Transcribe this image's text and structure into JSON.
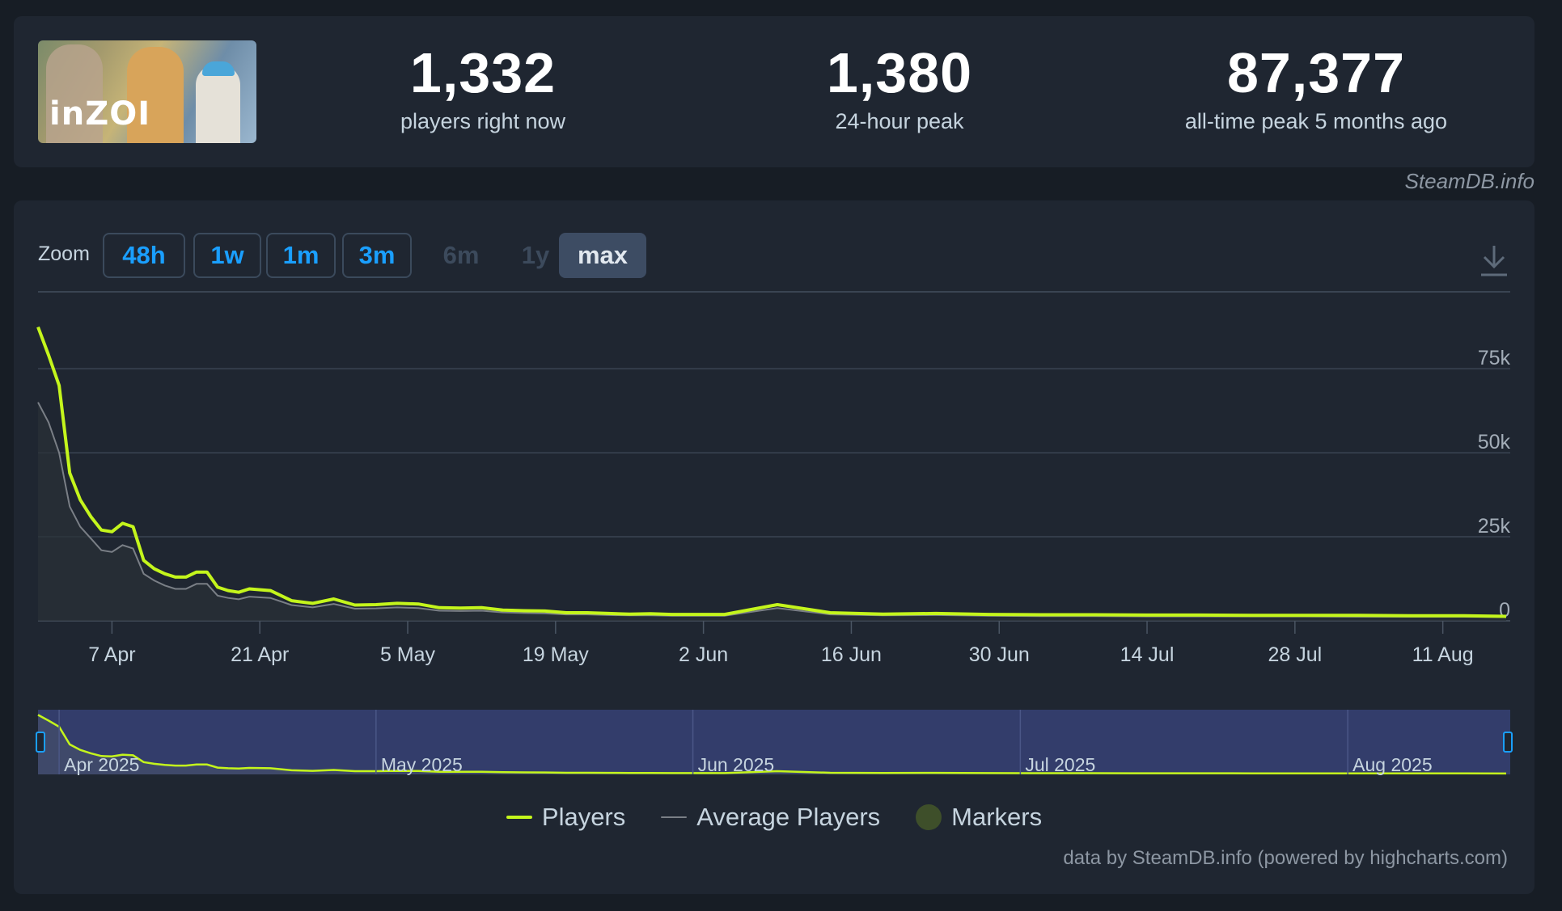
{
  "game": {
    "logo_text": "inZOI"
  },
  "stats": [
    {
      "value": "1,332",
      "label": "players right now"
    },
    {
      "value": "1,380",
      "label": "24-hour peak"
    },
    {
      "value": "87,377",
      "label": "all-time peak 5 months ago"
    }
  ],
  "credit_top": "SteamDB.info",
  "zoom": {
    "label": "Zoom",
    "buttons": [
      {
        "label": "48h",
        "state": "enabled"
      },
      {
        "label": "1w",
        "state": "enabled"
      },
      {
        "label": "1m",
        "state": "enabled"
      },
      {
        "label": "3m",
        "state": "enabled"
      },
      {
        "label": "6m",
        "state": "disabled"
      },
      {
        "label": "1y",
        "state": "disabled"
      },
      {
        "label": "max",
        "state": "selected"
      }
    ]
  },
  "download_icon": "download-icon",
  "colors": {
    "players": "#c4f51c",
    "average": "#7a7f86",
    "markers": "#3e4f2a",
    "navigator_bg": "#333d6b",
    "zoom_active": "#1a9fff"
  },
  "chart_data": {
    "type": "line",
    "title": "",
    "xlabel": "",
    "ylabel": "",
    "ylim": [
      0,
      95000
    ],
    "y_ticks": [
      "0",
      "25k",
      "50k",
      "75k"
    ],
    "x_tick_labels": [
      "7 Apr",
      "21 Apr",
      "5 May",
      "19 May",
      "2 Jun",
      "16 Jun",
      "30 Jun",
      "14 Jul",
      "28 Jul",
      "11 Aug"
    ],
    "x_range_days": [
      0,
      139
    ],
    "grid": true,
    "legend_position": "bottom",
    "series": [
      {
        "name": "Players",
        "x": [
          0,
          1,
          2,
          3,
          4,
          5,
          6,
          7,
          8,
          9,
          10,
          11,
          12,
          13,
          14,
          15,
          16,
          17,
          18,
          19,
          20,
          22,
          24,
          26,
          28,
          30,
          32,
          34,
          36,
          38,
          40,
          42,
          44,
          46,
          48,
          50,
          52,
          54,
          56,
          58,
          60,
          65,
          70,
          75,
          80,
          85,
          90,
          95,
          100,
          105,
          110,
          115,
          120,
          125,
          130,
          135,
          139
        ],
        "y": [
          87400,
          79000,
          70000,
          44000,
          36000,
          31000,
          27000,
          26500,
          29000,
          28000,
          18000,
          15500,
          14000,
          13000,
          13000,
          14500,
          14500,
          10000,
          9000,
          8500,
          9500,
          9000,
          6000,
          5200,
          6500,
          4700,
          4800,
          5200,
          5000,
          3900,
          3800,
          3900,
          3200,
          3000,
          2900,
          2400,
          2400,
          2200,
          2000,
          2100,
          1900,
          1900,
          4800,
          2400,
          2000,
          2200,
          1900,
          1800,
          1800,
          1700,
          1700,
          1600,
          1600,
          1600,
          1500,
          1500,
          1332
        ]
      },
      {
        "name": "Average Players",
        "x": [
          0,
          1,
          2,
          3,
          4,
          5,
          6,
          7,
          8,
          9,
          10,
          11,
          12,
          13,
          14,
          15,
          16,
          17,
          18,
          19,
          20,
          22,
          24,
          26,
          28,
          30,
          32,
          34,
          36,
          38,
          40,
          42,
          44,
          46,
          48,
          50,
          52,
          54,
          56,
          58,
          60,
          65,
          70,
          75,
          80,
          85,
          90,
          95,
          100,
          105,
          110,
          115,
          120,
          125,
          130,
          135,
          139
        ],
        "y": [
          65000,
          59000,
          50000,
          34000,
          28000,
          24500,
          21000,
          20500,
          22500,
          21500,
          14000,
          12000,
          10500,
          9500,
          9500,
          11000,
          11000,
          7500,
          6800,
          6400,
          7200,
          6800,
          4700,
          4000,
          5000,
          3600,
          3700,
          4000,
          3800,
          3000,
          2900,
          3000,
          2500,
          2300,
          2200,
          1900,
          1900,
          1700,
          1600,
          1600,
          1500,
          1500,
          3800,
          1900,
          1600,
          1700,
          1500,
          1400,
          1400,
          1300,
          1300,
          1300,
          1300,
          1200,
          1200,
          1200,
          1100
        ]
      },
      {
        "name": "Markers",
        "x": [],
        "y": []
      }
    ],
    "navigator": {
      "labels": [
        "Apr 2025",
        "May 2025",
        "Jun 2025",
        "Jul 2025",
        "Aug 2025"
      ]
    }
  },
  "credit_bottom": "data by SteamDB.info (powered by highcharts.com)"
}
